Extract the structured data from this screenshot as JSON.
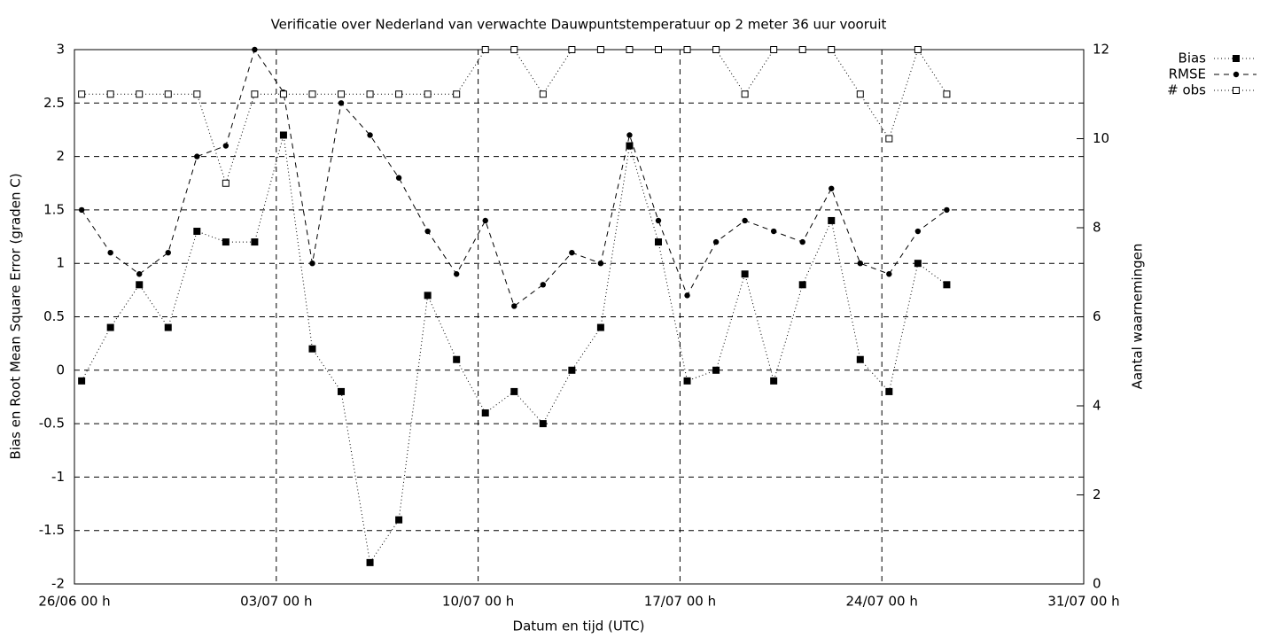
{
  "chart_data": {
    "type": "line",
    "title": "Verificatie over Nederland van verwachte Dauwpuntstemperatuur op 2 meter 36 uur vooruit",
    "xlabel": "Datum en tijd (UTC)",
    "ylabel": "Bias en Root Mean Square Error (graden C)",
    "y2label": "Aantal waarnemingen",
    "x": [
      "26/06 06 h",
      "27/06 06 h",
      "28/06 06 h",
      "29/06 06 h",
      "30/06 06 h",
      "01/07 06 h",
      "02/07 06 h",
      "03/07 06 h",
      "04/07 06 h",
      "05/07 06 h",
      "06/07 06 h",
      "07/07 06 h",
      "08/07 06 h",
      "09/07 06 h",
      "10/07 06 h",
      "11/07 06 h",
      "12/07 06 h",
      "13/07 06 h",
      "14/07 06 h",
      "15/07 06 h",
      "16/07 06 h",
      "17/07 06 h",
      "18/07 06 h",
      "19/07 06 h",
      "20/07 06 h",
      "21/07 06 h",
      "22/07 06 h",
      "23/07 06 h",
      "24/07 06 h",
      "25/07 06 h",
      "26/07 06 h"
    ],
    "xlim": [
      "26/06 00 h",
      "31/07 00 h"
    ],
    "xticks": [
      "26/06 00 h",
      "03/07 00 h",
      "10/07 00 h",
      "17/07 00 h",
      "24/07 00 h",
      "31/07 00 h"
    ],
    "ylim": [
      -2,
      3
    ],
    "yticks": [
      -2,
      -1.5,
      -1,
      -0.5,
      0,
      0.5,
      1,
      1.5,
      2,
      2.5,
      3
    ],
    "y2lim": [
      0,
      12
    ],
    "y2ticks": [
      0,
      2,
      4,
      6,
      8,
      10,
      12
    ],
    "grid": true,
    "legend": "outside-top-right",
    "series": [
      {
        "name": "Bias",
        "color": "#000000",
        "line": "dotted",
        "marker": "square-filled",
        "values": [
          -0.1,
          0.4,
          0.8,
          0.4,
          1.3,
          1.2,
          1.2,
          2.2,
          0.2,
          -0.2,
          -1.8,
          -1.4,
          0.7,
          0.1,
          -0.4,
          -0.2,
          -0.5,
          0.0,
          0.4,
          2.1,
          1.2,
          -0.1,
          0.0,
          0.9,
          -0.1,
          0.8,
          1.4,
          0.1,
          -0.2,
          1.0,
          0.8
        ]
      },
      {
        "name": "RMSE",
        "color": "#000000",
        "line": "dashed",
        "marker": "circle-filled",
        "values": [
          1.5,
          1.1,
          0.9,
          1.1,
          2.0,
          2.1,
          3.0,
          2.6,
          1.0,
          2.5,
          2.2,
          1.8,
          1.3,
          0.9,
          1.4,
          0.6,
          0.8,
          1.1,
          1.0,
          2.2,
          1.4,
          0.7,
          1.2,
          1.4,
          1.3,
          1.2,
          1.7,
          1.0,
          0.9,
          1.3,
          1.5
        ]
      },
      {
        "name": "# obs",
        "color": "#000000",
        "line": "dotted",
        "marker": "square-open",
        "axis": "y2",
        "values": [
          11,
          11,
          11,
          11,
          11,
          9,
          11,
          11,
          11,
          11,
          11,
          11,
          11,
          11,
          12,
          12,
          11,
          12,
          12,
          12,
          12,
          12,
          12,
          11,
          12,
          12,
          12,
          11,
          10,
          12,
          11
        ]
      }
    ]
  }
}
